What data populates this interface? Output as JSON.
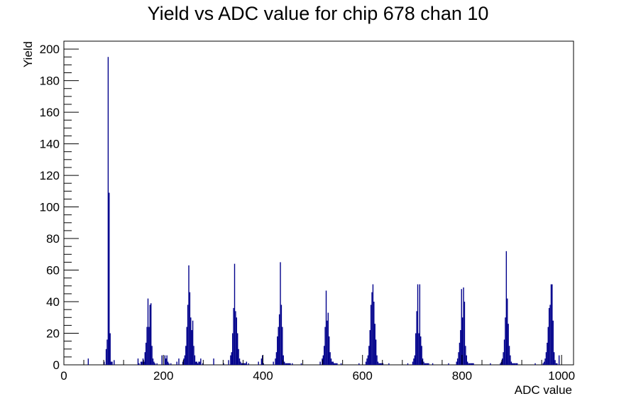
{
  "chart_data": {
    "type": "bar",
    "title": "Yield vs ADC value for chip 678 chan 10",
    "xlabel": "ADC value",
    "ylabel": "Yield",
    "xlim": [
      0,
      1024
    ],
    "ylim": [
      0,
      205
    ],
    "x_ticks": [
      0,
      200,
      400,
      600,
      800,
      1000
    ],
    "y_ticks": [
      0,
      20,
      40,
      60,
      80,
      100,
      120,
      140,
      160,
      180,
      200
    ],
    "bin_width": 2,
    "grid": false,
    "legend": "none",
    "color": "#00008b",
    "series": [
      {
        "x": [
          48,
          80,
          84,
          86,
          88,
          90,
          92,
          94,
          96,
          100,
          148,
          150,
          154,
          156,
          158,
          160,
          162,
          164,
          166,
          168,
          170,
          172,
          174,
          176,
          178,
          180,
          182,
          186,
          196,
          202,
          204,
          206,
          208,
          210,
          214,
          226,
          230,
          238,
          240,
          242,
          244,
          246,
          248,
          250,
          252,
          254,
          256,
          258,
          260,
          262,
          264,
          266,
          268,
          270,
          272,
          274,
          278,
          300,
          320,
          330,
          334,
          336,
          338,
          340,
          342,
          344,
          346,
          348,
          350,
          352,
          354,
          356,
          358,
          360,
          362,
          364,
          366,
          370,
          390,
          396,
          398,
          400,
          420,
          424,
          426,
          428,
          430,
          432,
          434,
          436,
          438,
          440,
          442,
          444,
          446,
          448,
          450,
          452,
          454,
          458,
          476,
          514,
          518,
          520,
          522,
          524,
          526,
          528,
          530,
          532,
          534,
          536,
          538,
          540,
          542,
          544,
          546,
          548,
          556,
          592,
          606,
          608,
          610,
          612,
          614,
          616,
          618,
          620,
          622,
          624,
          626,
          628,
          630,
          632,
          634,
          636,
          638,
          640,
          652,
          690,
          700,
          702,
          704,
          706,
          708,
          710,
          712,
          714,
          716,
          718,
          720,
          722,
          724,
          726,
          728,
          730,
          732,
          740,
          772,
          788,
          790,
          792,
          794,
          796,
          798,
          800,
          802,
          804,
          806,
          808,
          810,
          812,
          814,
          816,
          818,
          820,
          822,
          856,
          876,
          878,
          880,
          882,
          884,
          886,
          888,
          890,
          892,
          894,
          896,
          898,
          900,
          902,
          904,
          906,
          908,
          910,
          946,
          962,
          964,
          966,
          968,
          970,
          972,
          974,
          976,
          978,
          980,
          982,
          984,
          986,
          988,
          990,
          994
        ],
        "values": [
          4,
          2,
          10,
          16,
          195,
          109,
          20,
          2,
          2,
          3,
          4,
          1,
          2,
          2,
          4,
          2,
          8,
          14,
          24,
          42,
          24,
          38,
          39,
          12,
          4,
          2,
          1,
          1,
          6,
          6,
          4,
          6,
          2,
          1,
          1,
          2,
          4,
          2,
          4,
          6,
          12,
          24,
          38,
          63,
          46,
          30,
          22,
          28,
          12,
          6,
          2,
          2,
          1,
          2,
          2,
          4,
          1,
          4,
          1,
          3,
          6,
          8,
          20,
          36,
          64,
          34,
          30,
          20,
          10,
          4,
          2,
          1,
          1,
          1,
          1,
          1,
          2,
          1,
          2,
          4,
          6,
          1,
          2,
          4,
          8,
          18,
          24,
          32,
          65,
          38,
          24,
          6,
          2,
          1,
          1,
          1,
          1,
          1,
          1,
          1,
          1,
          2,
          4,
          6,
          12,
          24,
          47,
          28,
          33,
          18,
          8,
          4,
          2,
          2,
          1,
          1,
          1,
          1,
          1,
          1,
          2,
          4,
          6,
          12,
          22,
          38,
          46,
          51,
          40,
          26,
          16,
          6,
          2,
          1,
          1,
          1,
          1,
          1,
          1,
          1,
          2,
          4,
          6,
          20,
          34,
          51,
          20,
          51,
          18,
          12,
          4,
          2,
          1,
          1,
          1,
          1,
          1,
          1,
          1,
          2,
          4,
          8,
          14,
          22,
          48,
          30,
          49,
          40,
          12,
          6,
          2,
          1,
          1,
          1,
          1,
          1,
          1,
          1,
          1,
          2,
          4,
          8,
          16,
          30,
          72,
          42,
          26,
          12,
          6,
          2,
          1,
          1,
          1,
          1,
          1,
          1,
          1,
          1,
          2,
          4,
          8,
          14,
          24,
          36,
          38,
          51,
          51,
          28,
          8,
          3,
          1,
          1,
          6
        ]
      }
    ]
  }
}
